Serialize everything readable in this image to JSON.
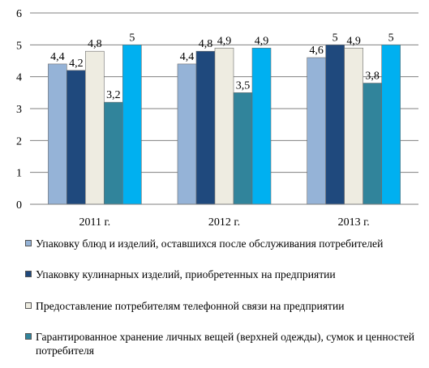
{
  "chart_data": {
    "type": "bar",
    "categories": [
      "2011 г.",
      "2012 г.",
      "2013 г."
    ],
    "series": [
      {
        "name": "Упаковку блюд и изделий, оставшихся после обслуживания потребителей",
        "values": [
          4.4,
          4.4,
          4.6
        ],
        "labels": [
          "4,4",
          "4,4",
          "4,6"
        ],
        "color": "#95b3d7"
      },
      {
        "name": "Упаковку кулинарных изделий, приобретенных на предприятии",
        "values": [
          4.2,
          4.8,
          5.0
        ],
        "labels": [
          "4,2",
          "4,8",
          "5"
        ],
        "color": "#1f497d"
      },
      {
        "name": "Предоставление потребителям телефонной связи на предприятии",
        "values": [
          4.8,
          4.9,
          4.9
        ],
        "labels": [
          "4,8",
          "4,9",
          "4,9"
        ],
        "color": "#eeece1"
      },
      {
        "name": "Гарантированное хранение личных вещей (верхней одежды), сумок и ценностей потребителя",
        "values": [
          3.2,
          3.5,
          3.8
        ],
        "labels": [
          "3,2",
          "3,5",
          "3,8"
        ],
        "color": "#31849b"
      },
      {
        "name": "",
        "values": [
          5.0,
          4.9,
          5.0
        ],
        "labels": [
          "5",
          "4,9",
          "5"
        ],
        "color": "#00b0f0"
      }
    ],
    "yticks": [
      "0",
      "1",
      "2",
      "3",
      "4",
      "5",
      "6"
    ],
    "ylim": [
      0,
      6
    ],
    "grid": true,
    "legend_position": "bottom",
    "title": "",
    "xlabel": "",
    "ylabel": ""
  }
}
